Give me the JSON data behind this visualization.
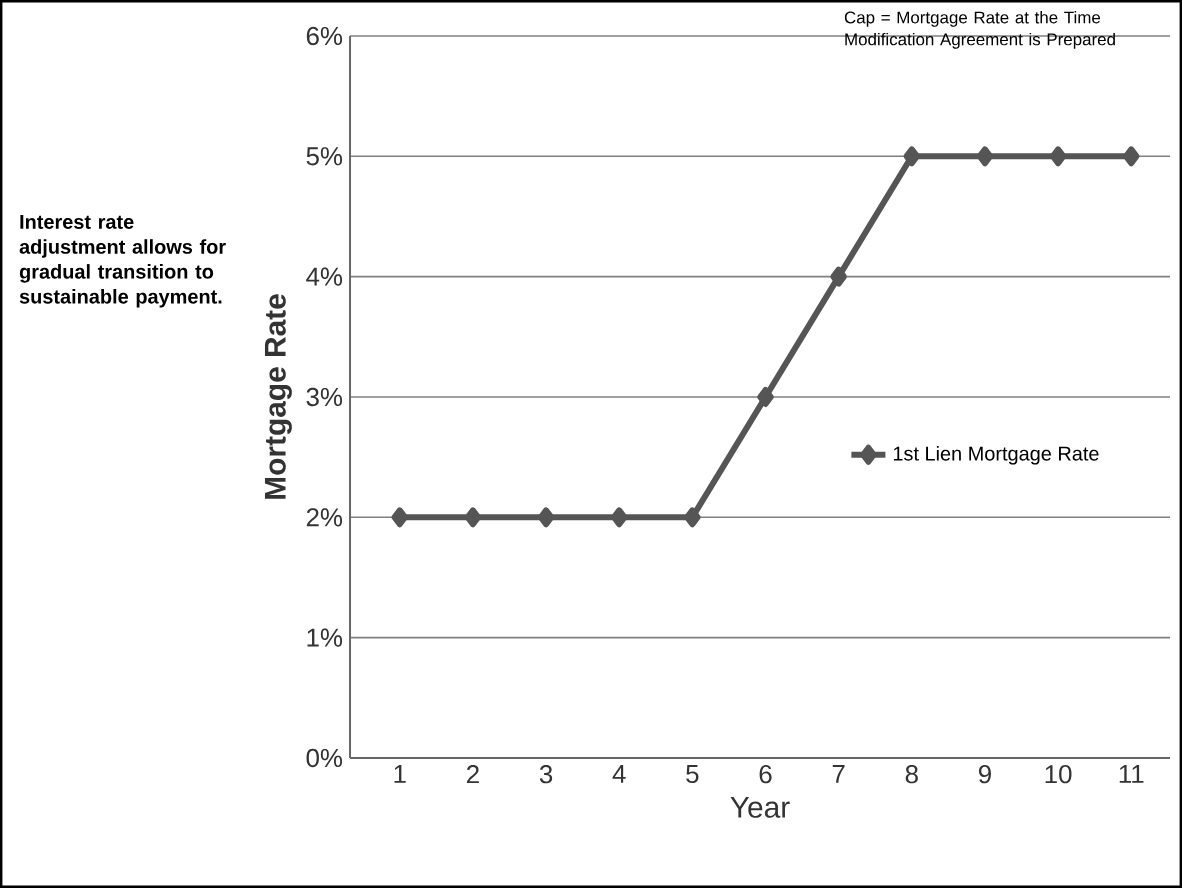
{
  "chart_data": {
    "type": "line",
    "xlabel": "Year",
    "ylabel": "Mortgage Rate",
    "categories": [
      "1",
      "2",
      "3",
      "4",
      "5",
      "6",
      "7",
      "8",
      "9",
      "10",
      "11"
    ],
    "series": [
      {
        "name": "1st Lien Mortgage Rate",
        "color": "#555555",
        "values": [
          2,
          2,
          2,
          2,
          2,
          3,
          4,
          5,
          5,
          5,
          5
        ]
      }
    ],
    "ylim": [
      0,
      6
    ],
    "yticks": [
      {
        "value": 0,
        "label": "0%"
      },
      {
        "value": 1,
        "label": "1%"
      },
      {
        "value": 2,
        "label": "2%"
      },
      {
        "value": 3,
        "label": "3%"
      },
      {
        "value": 4,
        "label": "4%"
      },
      {
        "value": 5,
        "label": "5%"
      },
      {
        "value": 6,
        "label": "6%"
      }
    ],
    "grid": "y",
    "legend": "right",
    "marker": "diamond",
    "line_style": "solid",
    "annotations": [
      "Cap = Mortgage Rate at the Time Modification Agreement is Prepared",
      "Interest rate adjustment allows for gradual transition to sustainable payment."
    ]
  }
}
